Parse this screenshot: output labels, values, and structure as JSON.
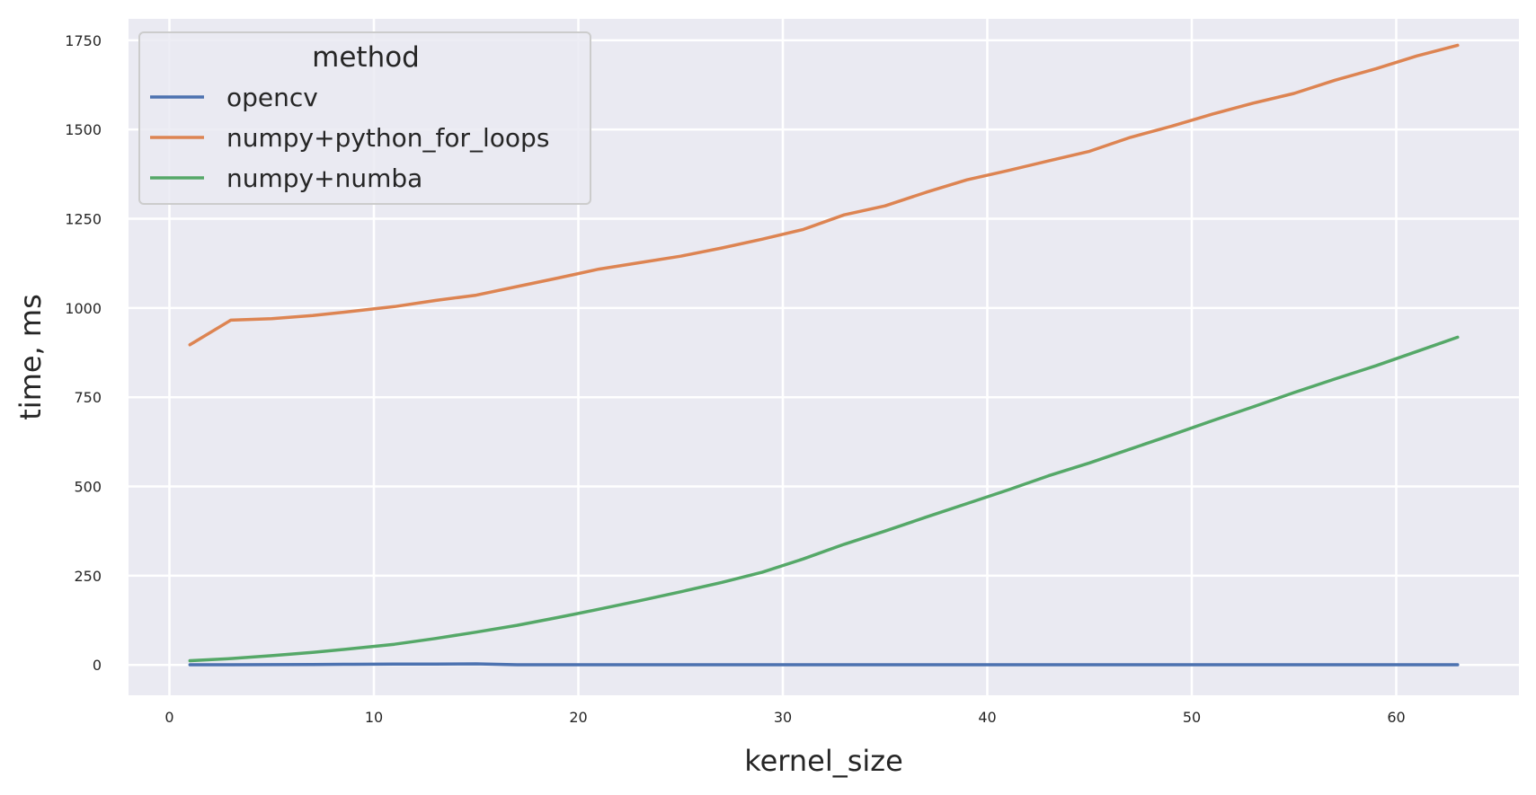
{
  "chart_data": {
    "type": "line",
    "title": "",
    "xlabel": "kernel_size",
    "ylabel": "time, ms",
    "xlim": [
      -2,
      66
    ],
    "ylim": [
      -85,
      1810
    ],
    "xticks": [
      0,
      10,
      20,
      30,
      40,
      50,
      60
    ],
    "yticks": [
      0,
      250,
      500,
      750,
      1000,
      1250,
      1500,
      1750
    ],
    "grid": true,
    "background": "#eaeaf2",
    "legend": {
      "title": "method",
      "placement": "top-left"
    },
    "x": [
      1,
      3,
      5,
      7,
      9,
      11,
      13,
      15,
      17,
      19,
      21,
      23,
      25,
      27,
      29,
      31,
      33,
      35,
      37,
      39,
      41,
      43,
      45,
      47,
      49,
      51,
      53,
      55,
      57,
      59,
      61,
      63
    ],
    "series": [
      {
        "name": "opencv",
        "color": "#4c72b0",
        "values": [
          0.5,
          0.6,
          0.8,
          1.2,
          1.8,
          2.3,
          2.7,
          3.0,
          0.5,
          0.5,
          0.5,
          0.5,
          0.5,
          0.5,
          0.5,
          0.5,
          0.5,
          0.5,
          0.5,
          0.5,
          0.5,
          0.5,
          0.5,
          0.5,
          0.5,
          0.5,
          0.5,
          0.5,
          0.5,
          0.5,
          0.5,
          0.5
        ]
      },
      {
        "name": "numpy+python_for_loops",
        "color": "#dd8452",
        "values": [
          897,
          966,
          970,
          979,
          991,
          1004,
          1021,
          1036,
          1060,
          1084,
          1109,
          1127,
          1145,
          1168,
          1193,
          1220,
          1261,
          1286,
          1324,
          1359,
          1385,
          1412,
          1439,
          1478,
          1509,
          1543,
          1574,
          1601,
          1638,
          1670,
          1706,
          1736
        ]
      },
      {
        "name": "numpy+numba",
        "color": "#55a868",
        "values": [
          12,
          18,
          26,
          35,
          46,
          58,
          74,
          92,
          111,
          133,
          156,
          180,
          205,
          231,
          260,
          297,
          338,
          375,
          414,
          452,
          490,
          530,
          566,
          605,
          644,
          684,
          723,
          763,
          801,
          838,
          878,
          918
        ]
      }
    ]
  }
}
